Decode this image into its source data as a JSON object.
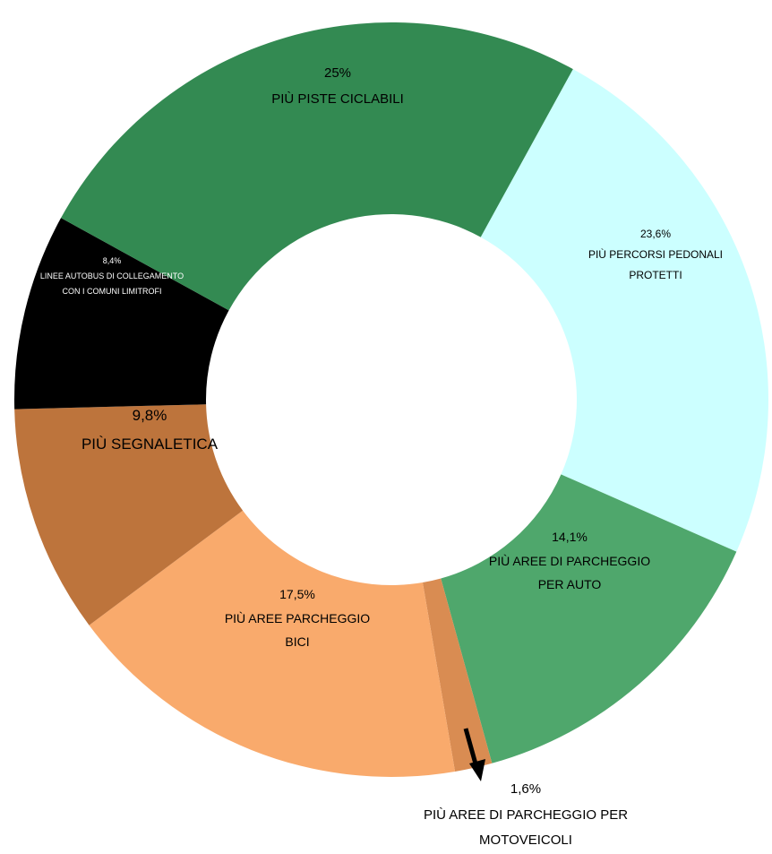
{
  "chart_data": {
    "type": "donut",
    "categories": [
      "PIÙ PERCORSI PEDONALI PROTETTI",
      "PIÙ AREE DI PARCHEGGIO PER AUTO",
      "PIÙ AREE DI PARCHEGGIO PER MOTOVEICOLI",
      "PIÙ AREE PARCHEGGIO BICI",
      "PIÙ SEGNALETICA",
      "LINEE AUTOBUS DI COLLEGAMENTO CON I COMUNI LIMITROFI",
      "PIÙ PISTE CICLABILI"
    ],
    "values": [
      23.6,
      14.1,
      1.6,
      17.5,
      9.8,
      8.4,
      25
    ],
    "value_labels": [
      "23,6%",
      "14,1%",
      "1,6%",
      "17,5%",
      "9,8%",
      "8,4%",
      "25%"
    ],
    "colors": [
      "#ccffff",
      "#4fa76c",
      "#d98c52",
      "#f9aa6c",
      "#bd743c",
      "#000000",
      "#338a52"
    ]
  }
}
